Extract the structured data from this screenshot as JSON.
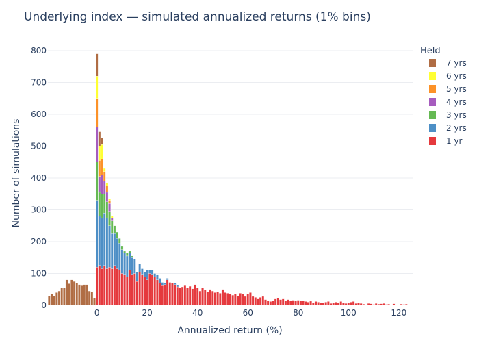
{
  "chart_data": {
    "type": "bar",
    "barmode": "stack",
    "title": "Underlying index — simulated annualized returns (1% bins)",
    "xlabel": "Annualized return (%)",
    "ylabel": "Number of simulations",
    "xlim": [
      -19,
      125
    ],
    "ylim": [
      0,
      830
    ],
    "x_ticks": [
      0,
      20,
      40,
      60,
      80,
      100,
      120
    ],
    "y_ticks": [
      0,
      100,
      200,
      300,
      400,
      500,
      600,
      700,
      800
    ],
    "grid": true,
    "legend": {
      "title": "Held",
      "position": "right"
    },
    "series": [
      {
        "name": "1 yr",
        "color": "#e5393d",
        "x": [
          0,
          1,
          2,
          3,
          4,
          5,
          6,
          7,
          8,
          9,
          10,
          11,
          12,
          13,
          14,
          15,
          16,
          17,
          18,
          19,
          20,
          21,
          22,
          23,
          24,
          25,
          26,
          27,
          28,
          29,
          30,
          31,
          32,
          33,
          34,
          35,
          36,
          37,
          38,
          39,
          40,
          41,
          42,
          43,
          44,
          45,
          46,
          47,
          48,
          49,
          50,
          51,
          52,
          53,
          54,
          55,
          56,
          57,
          58,
          59,
          60,
          61,
          62,
          63,
          64,
          65,
          66,
          67,
          68,
          69,
          70,
          71,
          72,
          73,
          74,
          75,
          76,
          77,
          78,
          79,
          80,
          81,
          82,
          83,
          84,
          85,
          86,
          87,
          88,
          89,
          90,
          91,
          92,
          93,
          94,
          95,
          96,
          97,
          98,
          99,
          100,
          101,
          102,
          103,
          104,
          105,
          106,
          107,
          108,
          109,
          110,
          111,
          112,
          113,
          114,
          115,
          116,
          117,
          118,
          119,
          120,
          121,
          122,
          123,
          124
        ],
        "values": [
          120,
          125,
          115,
          125,
          115,
          120,
          115,
          125,
          115,
          110,
          100,
          95,
          90,
          110,
          95,
          100,
          75,
          105,
          95,
          90,
          80,
          100,
          95,
          90,
          80,
          70,
          62,
          65,
          80,
          72,
          70,
          65,
          58,
          55,
          58,
          62,
          55,
          60,
          52,
          65,
          55,
          45,
          55,
          48,
          42,
          50,
          45,
          40,
          42,
          38,
          50,
          40,
          38,
          36,
          32,
          35,
          30,
          38,
          35,
          28,
          35,
          40,
          28,
          25,
          20,
          25,
          28,
          18,
          15,
          12,
          15,
          20,
          22,
          18,
          20,
          15,
          18,
          15,
          16,
          14,
          16,
          14,
          14,
          12,
          10,
          13,
          8,
          12,
          10,
          8,
          8,
          10,
          12,
          6,
          8,
          10,
          8,
          12,
          8,
          6,
          8,
          10,
          12,
          6,
          8,
          6,
          4,
          0,
          6,
          5,
          3,
          6,
          4,
          5,
          6,
          3,
          4,
          2,
          5,
          0,
          0,
          4,
          3,
          4,
          2
        ]
      },
      {
        "name": "2 yrs",
        "color": "#4d8fc6",
        "x": [
          0,
          1,
          2,
          3,
          4,
          5,
          6,
          7,
          8,
          9,
          10,
          11,
          12,
          13,
          14,
          15,
          16,
          17,
          18,
          19,
          20,
          21,
          22,
          23,
          24,
          25,
          26,
          27,
          28,
          29,
          30,
          31,
          32
        ],
        "values": [
          210,
          155,
          160,
          165,
          160,
          130,
          110,
          100,
          95,
          85,
          75,
          70,
          65,
          55,
          55,
          45,
          30,
          25,
          20,
          15,
          30,
          10,
          15,
          10,
          15,
          15,
          10,
          5,
          5,
          0,
          0,
          5,
          5
        ]
      },
      {
        "name": "3 yrs",
        "color": "#65b953",
        "x": [
          0,
          1,
          2,
          3,
          4,
          5,
          6,
          7,
          8,
          9,
          10,
          11,
          12,
          13,
          14
        ],
        "values": [
          120,
          75,
          75,
          60,
          50,
          45,
          40,
          25,
          20,
          15,
          10,
          5,
          10,
          5,
          5
        ]
      },
      {
        "name": "4 yrs",
        "color": "#a65cbe",
        "x": [
          0,
          1,
          2,
          3,
          4,
          5,
          6
        ],
        "values": [
          110,
          50,
          60,
          40,
          30,
          25,
          10
        ]
      },
      {
        "name": "5 yrs",
        "color": "#fc9228",
        "x": [
          0,
          1,
          2,
          3,
          4,
          5
        ],
        "values": [
          90,
          50,
          50,
          30,
          20,
          10
        ]
      },
      {
        "name": "6 yrs",
        "color": "#ffff33",
        "x": [
          0,
          1,
          2,
          3,
          4,
          5,
          6
        ],
        "values": [
          70,
          45,
          45,
          10,
          10,
          5,
          5
        ]
      },
      {
        "name": "7 yrs",
        "color": "#b06d44",
        "x": [
          -19,
          -18,
          -17,
          -16,
          -15,
          -14,
          -13,
          -12,
          -11,
          -10,
          -9,
          -8,
          -7,
          -6,
          -5,
          -4,
          -3,
          -2,
          -1,
          0,
          1,
          2
        ],
        "values": [
          30,
          35,
          30,
          40,
          45,
          55,
          55,
          80,
          68,
          80,
          75,
          70,
          65,
          62,
          65,
          65,
          45,
          42,
          22,
          70,
          45,
          20
        ]
      }
    ]
  }
}
